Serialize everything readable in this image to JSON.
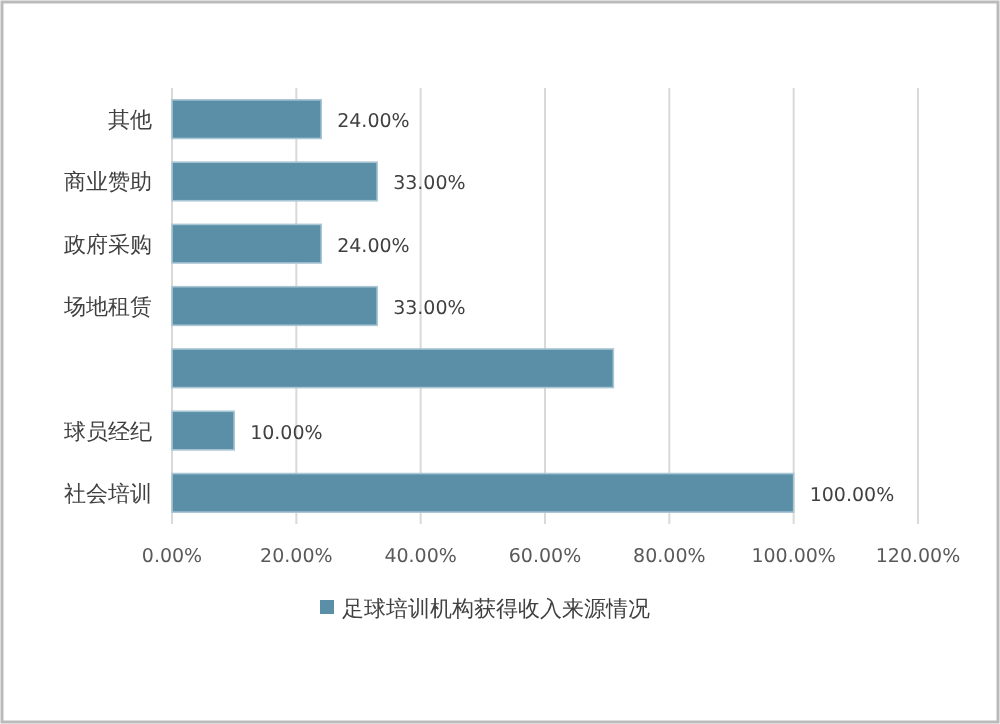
{
  "chart_data": {
    "type": "bar",
    "orientation": "horizontal",
    "categories": [
      "其他",
      "商业赞助",
      "政府采购",
      "场地租赁",
      null,
      "球员经纪",
      "社会培训"
    ],
    "series": [
      {
        "name": "足球培训机构获得收入来源情况",
        "color": "#5b8fa8",
        "values": [
          24,
          33,
          24,
          33,
          71,
          10,
          100
        ],
        "value_labels": [
          "24.00%",
          "33.00%",
          "24.00%",
          "33.00%",
          null,
          "10.00%",
          "100.00%"
        ]
      }
    ],
    "xlim": [
      0,
      120
    ],
    "xticks": [
      {
        "value": 0,
        "label": "0.00%"
      },
      {
        "value": 20,
        "label": "20.00%"
      },
      {
        "value": 40,
        "label": "40.00%"
      },
      {
        "value": 60,
        "label": "60.00%"
      },
      {
        "value": 80,
        "label": "80.00%"
      },
      {
        "value": 100,
        "label": "100.00%"
      },
      {
        "value": 120,
        "label": "120.00%"
      }
    ],
    "grid": "x",
    "legend": "bottom"
  }
}
